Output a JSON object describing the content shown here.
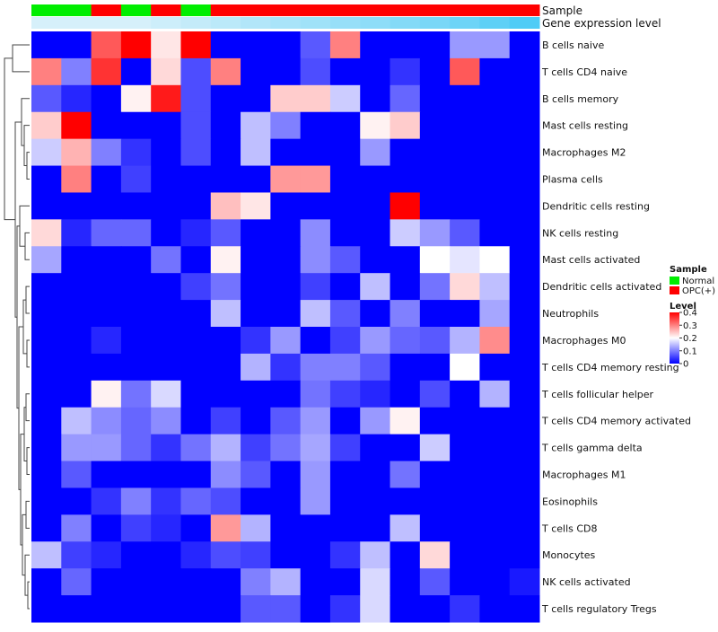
{
  "chart_data": {
    "type": "heatmap",
    "title": "",
    "annotation_labels": [
      "Sample",
      "Gene expression level"
    ],
    "rows": [
      "B cells naive",
      "T cells CD4 naive",
      "B cells memory",
      "Mast cells resting",
      "Macrophages M2",
      "Plasma cells",
      "Dendritic cells resting",
      "NK cells resting",
      "Mast cells activated",
      "Dendritic cells activated",
      "Neutrophils",
      "Macrophages M0",
      "T cells CD4 memory resting",
      "T cells follicular helper",
      "T cells CD4 memory activated",
      "T cells gamma delta",
      "Macrophages M1",
      "Eosinophils",
      "T cells CD8",
      "Monocytes",
      "NK cells activated",
      "T cells regulatory  Tregs"
    ],
    "sample_groups": [
      "Normal",
      "Normal",
      "OPC(+)",
      "Normal",
      "OPC(+)",
      "Normal",
      "OPC(+)",
      "OPC(+)",
      "OPC(+)",
      "OPC(+)",
      "OPC(+)",
      "OPC(+)",
      "OPC(+)",
      "OPC(+)",
      "OPC(+)",
      "OPC(+)",
      "OPC(+)"
    ],
    "expression_level": [
      0,
      0,
      0,
      0,
      0.06,
      0.12,
      0.18,
      0.24,
      0.3,
      0.36,
      0.42,
      0.48,
      0.55,
      0.62,
      0.7,
      0.8,
      0.9
    ],
    "values": [
      [
        0.0,
        0.0,
        0.33,
        0.4,
        0.22,
        0.4,
        0.0,
        0.0,
        0.0,
        0.07,
        0.3,
        0.0,
        0.0,
        0.0,
        0.12,
        0.12,
        0.0
      ],
      [
        0.3,
        0.1,
        0.36,
        0.0,
        0.23,
        0.06,
        0.3,
        0.0,
        0.0,
        0.06,
        0.0,
        0.0,
        0.04,
        0.0,
        0.33,
        0.0,
        0.0
      ],
      [
        0.07,
        0.03,
        0.0,
        0.21,
        0.38,
        0.06,
        0.0,
        0.0,
        0.24,
        0.24,
        0.16,
        0.0,
        0.08,
        0.0,
        0.0,
        0.0,
        0.0
      ],
      [
        0.24,
        0.4,
        0.0,
        0.0,
        0.0,
        0.06,
        0.0,
        0.15,
        0.1,
        0.0,
        0.0,
        0.21,
        0.24,
        0.0,
        0.0,
        0.0,
        0.0
      ],
      [
        0.16,
        0.26,
        0.1,
        0.04,
        0.0,
        0.06,
        0.0,
        0.15,
        0.0,
        0.0,
        0.0,
        0.12,
        0.0,
        0.0,
        0.0,
        0.0,
        0.0
      ],
      [
        0.0,
        0.3,
        0.0,
        0.05,
        0.0,
        0.0,
        0.0,
        0.0,
        0.28,
        0.28,
        0.0,
        0.0,
        0.0,
        0.0,
        0.0,
        0.0,
        0.0
      ],
      [
        0.0,
        0.0,
        0.0,
        0.0,
        0.0,
        0.0,
        0.25,
        0.22,
        0.0,
        0.0,
        0.0,
        0.0,
        0.4,
        0.0,
        0.0,
        0.0,
        0.0
      ],
      [
        0.23,
        0.03,
        0.08,
        0.08,
        0.0,
        0.03,
        0.07,
        0.0,
        0.0,
        0.11,
        0.0,
        0.0,
        0.16,
        0.12,
        0.07,
        0.0,
        0.0
      ],
      [
        0.13,
        0.0,
        0.0,
        0.0,
        0.09,
        0.0,
        0.21,
        0.0,
        0.0,
        0.11,
        0.07,
        0.0,
        0.0,
        0.2,
        0.18,
        0.2,
        0.0
      ],
      [
        0.0,
        0.0,
        0.0,
        0.0,
        0.0,
        0.05,
        0.09,
        0.0,
        0.0,
        0.05,
        0.0,
        0.15,
        0.0,
        0.09,
        0.23,
        0.15,
        0.0
      ],
      [
        0.0,
        0.0,
        0.0,
        0.0,
        0.0,
        0.0,
        0.15,
        0.0,
        0.0,
        0.15,
        0.07,
        0.0,
        0.1,
        0.0,
        0.0,
        0.13,
        0.0
      ],
      [
        0.0,
        0.0,
        0.03,
        0.0,
        0.0,
        0.0,
        0.0,
        0.04,
        0.12,
        0.0,
        0.05,
        0.12,
        0.08,
        0.07,
        0.14,
        0.29,
        0.0
      ],
      [
        0.0,
        0.0,
        0.0,
        0.0,
        0.0,
        0.0,
        0.0,
        0.14,
        0.04,
        0.1,
        0.1,
        0.07,
        0.0,
        0.0,
        0.2,
        0.0,
        0.0
      ],
      [
        0.0,
        0.0,
        0.21,
        0.09,
        0.17,
        0.0,
        0.0,
        0.0,
        0.0,
        0.09,
        0.05,
        0.03,
        0.0,
        0.06,
        0.0,
        0.14,
        0.0
      ],
      [
        0.0,
        0.15,
        0.11,
        0.08,
        0.11,
        0.0,
        0.05,
        0.0,
        0.07,
        0.12,
        0.0,
        0.12,
        0.21,
        0.0,
        0.0,
        0.0,
        0.0
      ],
      [
        0.0,
        0.12,
        0.12,
        0.08,
        0.04,
        0.09,
        0.14,
        0.05,
        0.09,
        0.13,
        0.05,
        0.0,
        0.0,
        0.16,
        0.0,
        0.0,
        0.0
      ],
      [
        0.0,
        0.07,
        0.0,
        0.0,
        0.0,
        0.0,
        0.11,
        0.07,
        0.0,
        0.12,
        0.0,
        0.0,
        0.09,
        0.0,
        0.0,
        0.0,
        0.0
      ],
      [
        0.0,
        0.0,
        0.04,
        0.1,
        0.04,
        0.08,
        0.06,
        0.0,
        0.0,
        0.12,
        0.0,
        0.0,
        0.0,
        0.0,
        0.0,
        0.0,
        0.0
      ],
      [
        0.0,
        0.1,
        0.0,
        0.05,
        0.03,
        0.0,
        0.28,
        0.14,
        0.0,
        0.0,
        0.0,
        0.0,
        0.15,
        0.0,
        0.0,
        0.0,
        0.0
      ],
      [
        0.15,
        0.05,
        0.03,
        0.0,
        0.0,
        0.03,
        0.06,
        0.05,
        0.0,
        0.0,
        0.04,
        0.15,
        0.0,
        0.23,
        0.0,
        0.0,
        0.0
      ],
      [
        0.0,
        0.08,
        0.0,
        0.0,
        0.0,
        0.0,
        0.0,
        0.1,
        0.14,
        0.0,
        0.0,
        0.17,
        0.0,
        0.07,
        0.0,
        0.0,
        0.02
      ],
      [
        0.0,
        0.0,
        0.0,
        0.0,
        0.0,
        0.0,
        0.0,
        0.07,
        0.07,
        0.0,
        0.04,
        0.17,
        0.0,
        0.0,
        0.04,
        0.0,
        0.0
      ]
    ],
    "scale": {
      "min": 0,
      "max": 0.4,
      "low_color": "#0000ff",
      "mid_color": "#ffffff",
      "high_color": "#ff0000",
      "mid_value": 0.2
    },
    "annotation_colors": {
      "Sample": {
        "Normal": "#00ee00",
        "OPC(+)": "#ff0000"
      },
      "Gene expression level": {
        "low": "#d6f0fa",
        "high": "#40c8f5"
      }
    },
    "legend": {
      "sample_title": "Sample",
      "sample_items": [
        "Normal",
        "OPC(+)"
      ],
      "level_title": "Level",
      "level_ticks": [
        "0.4",
        "0.3",
        "0.2",
        "0.1",
        "0"
      ],
      "level_tick_values": [
        0.4,
        0.3,
        0.2,
        0.1,
        0
      ]
    },
    "dendrogram": "row clustering tree",
    "legend_position": "right"
  }
}
